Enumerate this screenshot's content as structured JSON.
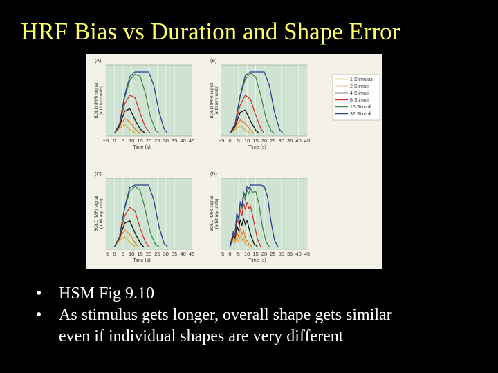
{
  "slide": {
    "title": "HRF Bias vs Duration and Shape Error",
    "bullets": [
      {
        "line1": "HSM Fig 9.10"
      },
      {
        "line1": "As stimulus gets longer, overall shape gets similar",
        "line2": "even if individual shapes are very different"
      }
    ]
  },
  "chart_data": [
    {
      "panel": "(A)",
      "type": "line",
      "ylabel": "BOLD fMRI signal (arbitrary units)",
      "xlabel": "Time (s)",
      "x_ticks": [
        -5,
        0,
        5,
        10,
        15,
        20,
        25,
        30,
        35,
        40,
        45
      ],
      "xlim": [
        -5,
        45
      ],
      "series": [
        {
          "name": "1 Stimulus",
          "points": [
            [
              0,
              0
            ],
            [
              3,
              0.08
            ],
            [
              6,
              0.14
            ],
            [
              9,
              0.06
            ],
            [
              12,
              0.01
            ],
            [
              15,
              0
            ]
          ]
        },
        {
          "name": "2 Stimuli",
          "points": [
            [
              0,
              0
            ],
            [
              3,
              0.1
            ],
            [
              6,
              0.24
            ],
            [
              9,
              0.19
            ],
            [
              12,
              0.07
            ],
            [
              15,
              0
            ]
          ]
        },
        {
          "name": "4 Stimuli",
          "points": [
            [
              0,
              0
            ],
            [
              3,
              0.12
            ],
            [
              6,
              0.36
            ],
            [
              9,
              0.4
            ],
            [
              12,
              0.22
            ],
            [
              15,
              0.07
            ],
            [
              18,
              0
            ]
          ]
        },
        {
          "name": "8 Stimuli",
          "points": [
            [
              0,
              0
            ],
            [
              3,
              0.14
            ],
            [
              6,
              0.48
            ],
            [
              9,
              0.62
            ],
            [
              12,
              0.58
            ],
            [
              15,
              0.33
            ],
            [
              18,
              0.1
            ],
            [
              21,
              0
            ]
          ]
        },
        {
          "name": "16 Stimuli",
          "points": [
            [
              0,
              0
            ],
            [
              3,
              0.15
            ],
            [
              6,
              0.58
            ],
            [
              9,
              0.86
            ],
            [
              12,
              0.96
            ],
            [
              15,
              0.93
            ],
            [
              18,
              0.66
            ],
            [
              21,
              0.27
            ],
            [
              24,
              0.05
            ],
            [
              26,
              0
            ]
          ]
        },
        {
          "name": "32 Stimuli",
          "points": [
            [
              0,
              0
            ],
            [
              3,
              0.15
            ],
            [
              6,
              0.62
            ],
            [
              9,
              0.92
            ],
            [
              12,
              1.0
            ],
            [
              16,
              1.0
            ],
            [
              20,
              1.0
            ],
            [
              23,
              0.78
            ],
            [
              26,
              0.35
            ],
            [
              29,
              0.07
            ],
            [
              31,
              0
            ]
          ]
        }
      ]
    },
    {
      "panel": "(B)",
      "type": "line",
      "ylabel": "BOLD fMRI signal (arbitrary units)",
      "xlabel": "Time (s)",
      "x_ticks": [
        -5,
        0,
        5,
        10,
        15,
        20,
        25,
        30,
        35,
        40,
        45
      ],
      "xlim": [
        -5,
        45
      ],
      "series": [
        {
          "name": "1 Stimulus",
          "points": [
            [
              0,
              0
            ],
            [
              3,
              0.06
            ],
            [
              6,
              0.12
            ],
            [
              9,
              0.05
            ],
            [
              12,
              0
            ]
          ]
        },
        {
          "name": "2 Stimuli",
          "points": [
            [
              0,
              0
            ],
            [
              3,
              0.09
            ],
            [
              6,
              0.22
            ],
            [
              9,
              0.16
            ],
            [
              12,
              0.05
            ],
            [
              14,
              0
            ]
          ]
        },
        {
          "name": "4 Stimuli",
          "points": [
            [
              0,
              0
            ],
            [
              3,
              0.11
            ],
            [
              6,
              0.34
            ],
            [
              9,
              0.38
            ],
            [
              12,
              0.2
            ],
            [
              15,
              0.05
            ],
            [
              17,
              0
            ]
          ]
        },
        {
          "name": "8 Stimuli",
          "points": [
            [
              0,
              0
            ],
            [
              3,
              0.13
            ],
            [
              6,
              0.46
            ],
            [
              9,
              0.62
            ],
            [
              12,
              0.55
            ],
            [
              15,
              0.3
            ],
            [
              18,
              0.08
            ],
            [
              20,
              0
            ]
          ]
        },
        {
          "name": "16 Stimuli",
          "points": [
            [
              0,
              0
            ],
            [
              3,
              0.15
            ],
            [
              6,
              0.6
            ],
            [
              9,
              0.88
            ],
            [
              12,
              0.98
            ],
            [
              15,
              0.92
            ],
            [
              18,
              0.62
            ],
            [
              21,
              0.24
            ],
            [
              24,
              0.04
            ],
            [
              26,
              0
            ]
          ]
        },
        {
          "name": "32 Stimuli",
          "points": [
            [
              0,
              0
            ],
            [
              3,
              0.15
            ],
            [
              6,
              0.62
            ],
            [
              9,
              0.94
            ],
            [
              12,
              1.0
            ],
            [
              16,
              1.0
            ],
            [
              20,
              1.0
            ],
            [
              23,
              0.78
            ],
            [
              26,
              0.34
            ],
            [
              29,
              0.06
            ],
            [
              31,
              0
            ]
          ]
        }
      ]
    },
    {
      "panel": "(C)",
      "type": "line",
      "ylabel": "BOLD fMRI signal (arbitrary units)",
      "xlabel": "Time (s)",
      "x_ticks": [
        -5,
        0,
        5,
        10,
        15,
        20,
        25,
        30,
        35,
        40,
        45
      ],
      "xlim": [
        -5,
        45
      ],
      "series": [
        {
          "name": "1 Stimulus",
          "points": [
            [
              0,
              0
            ],
            [
              3,
              0.1
            ],
            [
              6,
              0.16
            ],
            [
              9,
              0.07
            ],
            [
              12,
              0
            ]
          ]
        },
        {
          "name": "2 Stimuli",
          "points": [
            [
              0,
              0
            ],
            [
              3,
              0.12
            ],
            [
              6,
              0.27
            ],
            [
              9,
              0.2
            ],
            [
              12,
              0.06
            ],
            [
              14,
              0
            ]
          ]
        },
        {
          "name": "4 Stimuli",
          "points": [
            [
              0,
              0
            ],
            [
              3,
              0.14
            ],
            [
              6,
              0.38
            ],
            [
              9,
              0.42
            ],
            [
              12,
              0.22
            ],
            [
              15,
              0.06
            ],
            [
              17,
              0
            ]
          ]
        },
        {
          "name": "8 Stimuli",
          "points": [
            [
              0,
              0
            ],
            [
              3,
              0.15
            ],
            [
              6,
              0.5
            ],
            [
              9,
              0.64
            ],
            [
              12,
              0.58
            ],
            [
              15,
              0.3
            ],
            [
              18,
              0.08
            ],
            [
              20,
              0
            ]
          ]
        },
        {
          "name": "16 Stimuli",
          "points": [
            [
              0,
              0
            ],
            [
              3,
              0.16
            ],
            [
              6,
              0.62
            ],
            [
              9,
              0.9
            ],
            [
              12,
              0.98
            ],
            [
              15,
              0.92
            ],
            [
              18,
              0.6
            ],
            [
              21,
              0.22
            ],
            [
              24,
              0.03
            ],
            [
              26,
              0
            ]
          ]
        },
        {
          "name": "32 Stimuli",
          "points": [
            [
              0,
              0
            ],
            [
              3,
              0.16
            ],
            [
              6,
              0.64
            ],
            [
              9,
              0.96
            ],
            [
              12,
              1.0
            ],
            [
              16,
              1.0
            ],
            [
              20,
              1.0
            ],
            [
              23,
              0.76
            ],
            [
              26,
              0.32
            ],
            [
              29,
              0.05
            ],
            [
              31,
              0
            ]
          ]
        }
      ]
    },
    {
      "panel": "(D)",
      "type": "line",
      "ylabel": "BOLD fMRI signal (arbitrary units)",
      "xlabel": "Time (s)",
      "x_ticks": [
        -5,
        0,
        5,
        10,
        15,
        20,
        25,
        30,
        35,
        40,
        45
      ],
      "xlim": [
        -5,
        45
      ],
      "series": [
        {
          "name": "1 Stimulus",
          "points": [
            [
              0,
              0
            ],
            [
              2,
              0.1
            ],
            [
              3,
              0.06
            ],
            [
              4,
              0.14
            ],
            [
              5,
              0.08
            ],
            [
              6,
              0.16
            ],
            [
              7,
              0.1
            ],
            [
              8,
              0.14
            ],
            [
              9,
              0.05
            ],
            [
              11,
              0
            ]
          ]
        },
        {
          "name": "2 Stimuli",
          "points": [
            [
              0,
              0
            ],
            [
              2,
              0.14
            ],
            [
              3,
              0.1
            ],
            [
              4,
              0.24
            ],
            [
              5,
              0.16
            ],
            [
              6,
              0.3
            ],
            [
              7,
              0.2
            ],
            [
              8,
              0.26
            ],
            [
              9,
              0.14
            ],
            [
              11,
              0.04
            ],
            [
              13,
              0
            ]
          ]
        },
        {
          "name": "4 Stimuli",
          "points": [
            [
              0,
              0
            ],
            [
              2,
              0.18
            ],
            [
              3,
              0.14
            ],
            [
              4,
              0.34
            ],
            [
              5,
              0.26
            ],
            [
              6,
              0.44
            ],
            [
              7,
              0.34
            ],
            [
              8,
              0.46
            ],
            [
              9,
              0.36
            ],
            [
              10,
              0.42
            ],
            [
              12,
              0.2
            ],
            [
              14,
              0.05
            ],
            [
              16,
              0
            ]
          ]
        },
        {
          "name": "8 Stimuli",
          "points": [
            [
              0,
              0
            ],
            [
              2,
              0.22
            ],
            [
              3,
              0.18
            ],
            [
              4,
              0.46
            ],
            [
              5,
              0.38
            ],
            [
              6,
              0.6
            ],
            [
              7,
              0.5
            ],
            [
              8,
              0.7
            ],
            [
              9,
              0.6
            ],
            [
              10,
              0.72
            ],
            [
              11,
              0.62
            ],
            [
              12,
              0.66
            ],
            [
              14,
              0.4
            ],
            [
              16,
              0.12
            ],
            [
              18,
              0
            ]
          ]
        },
        {
          "name": "16 Stimuli",
          "points": [
            [
              0,
              0
            ],
            [
              2,
              0.24
            ],
            [
              3,
              0.2
            ],
            [
              4,
              0.52
            ],
            [
              5,
              0.44
            ],
            [
              6,
              0.7
            ],
            [
              7,
              0.62
            ],
            [
              8,
              0.84
            ],
            [
              9,
              0.76
            ],
            [
              10,
              0.92
            ],
            [
              11,
              0.86
            ],
            [
              12,
              0.95
            ],
            [
              13,
              0.88
            ],
            [
              15,
              0.9
            ],
            [
              17,
              0.68
            ],
            [
              19,
              0.32
            ],
            [
              21,
              0.08
            ],
            [
              23,
              0
            ]
          ]
        },
        {
          "name": "32 Stimuli",
          "points": [
            [
              0,
              0
            ],
            [
              2,
              0.24
            ],
            [
              3,
              0.2
            ],
            [
              4,
              0.54
            ],
            [
              5,
              0.46
            ],
            [
              6,
              0.72
            ],
            [
              7,
              0.66
            ],
            [
              8,
              0.88
            ],
            [
              9,
              0.82
            ],
            [
              10,
              0.98
            ],
            [
              11,
              0.94
            ],
            [
              12,
              1.0
            ],
            [
              14,
              1.0
            ],
            [
              16,
              1.0
            ],
            [
              18,
              1.0
            ],
            [
              20,
              0.98
            ],
            [
              22,
              0.8
            ],
            [
              24,
              0.4
            ],
            [
              26,
              0.1
            ],
            [
              28,
              0
            ]
          ]
        }
      ]
    }
  ],
  "legend": {
    "entries": [
      "1 Stimulus",
      "2 Stimuli",
      "4 Stimuli",
      "8 Stimuli",
      "16 Stimuli",
      "32 Stimuli"
    ],
    "colors": [
      "#d8a83a",
      "#ee7a1e",
      "#111111",
      "#d9342b",
      "#3f8a4b",
      "#2c3f8e"
    ]
  }
}
